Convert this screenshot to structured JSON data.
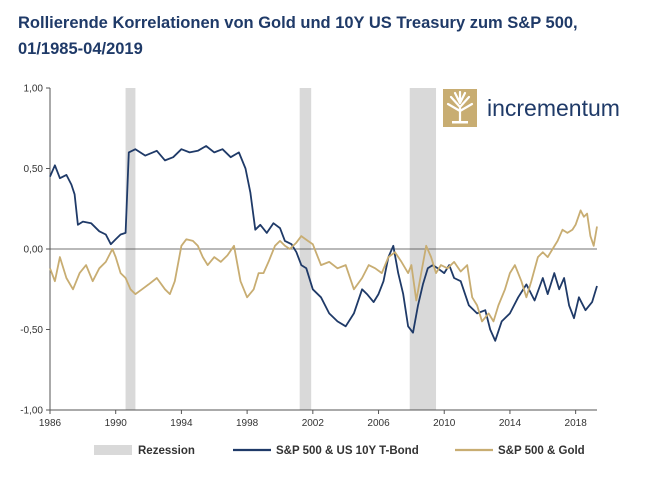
{
  "title_line1": "Rollierende Korrelationen von Gold und 10Y US Treasury zum S&P 500,",
  "title_line2": "01/1985-04/2019",
  "brand": {
    "name": "incrementum"
  },
  "colors": {
    "bond": "#1f3a68",
    "gold": "#c8ad72",
    "recession": "#d9d9d9",
    "title": "#1f3a68"
  },
  "chart_data": {
    "type": "line",
    "title": "Rollierende Korrelationen von Gold und 10Y US Treasury zum S&P 500, 01/1985-04/2019",
    "xlim": [
      1986,
      2019.3
    ],
    "ylim": [
      -1.0,
      1.0
    ],
    "x_ticks": [
      1986,
      1990,
      1994,
      1998,
      2002,
      2006,
      2010,
      2014,
      2018
    ],
    "y_ticks": [
      1.0,
      0.5,
      0.0,
      -0.5,
      -1.0
    ],
    "y_tick_labels": [
      "1,00",
      "0,50",
      "0,00",
      "-0,50",
      "-1,00"
    ],
    "recessions": [
      [
        1990.6,
        1991.2
      ],
      [
        2001.2,
        2001.9
      ],
      [
        2007.9,
        2009.5
      ]
    ],
    "legend": [
      "Rezession",
      "S&P 500 & US 10Y T-Bond",
      "S&P 500 & Gold"
    ],
    "series": [
      {
        "name": "S&P 500 & US 10Y T-Bond",
        "points": [
          [
            1986.0,
            0.45
          ],
          [
            1986.3,
            0.52
          ],
          [
            1986.6,
            0.44
          ],
          [
            1987.0,
            0.46
          ],
          [
            1987.3,
            0.4
          ],
          [
            1987.5,
            0.34
          ],
          [
            1987.7,
            0.15
          ],
          [
            1988.0,
            0.17
          ],
          [
            1988.5,
            0.16
          ],
          [
            1989.0,
            0.11
          ],
          [
            1989.4,
            0.09
          ],
          [
            1989.7,
            0.03
          ],
          [
            1990.0,
            0.06
          ],
          [
            1990.3,
            0.09
          ],
          [
            1990.6,
            0.1
          ],
          [
            1990.8,
            0.6
          ],
          [
            1991.2,
            0.62
          ],
          [
            1991.8,
            0.58
          ],
          [
            1992.5,
            0.61
          ],
          [
            1993.0,
            0.55
          ],
          [
            1993.5,
            0.57
          ],
          [
            1994.0,
            0.62
          ],
          [
            1994.5,
            0.6
          ],
          [
            1995.0,
            0.61
          ],
          [
            1995.5,
            0.64
          ],
          [
            1996.0,
            0.6
          ],
          [
            1996.5,
            0.62
          ],
          [
            1997.0,
            0.57
          ],
          [
            1997.5,
            0.6
          ],
          [
            1997.9,
            0.5
          ],
          [
            1998.2,
            0.35
          ],
          [
            1998.5,
            0.12
          ],
          [
            1998.8,
            0.15
          ],
          [
            1999.2,
            0.1
          ],
          [
            1999.6,
            0.16
          ],
          [
            2000.0,
            0.13
          ],
          [
            2000.3,
            0.05
          ],
          [
            2000.7,
            0.03
          ],
          [
            2001.0,
            -0.02
          ],
          [
            2001.3,
            -0.1
          ],
          [
            2001.6,
            -0.12
          ],
          [
            2002.0,
            -0.25
          ],
          [
            2002.5,
            -0.3
          ],
          [
            2003.0,
            -0.4
          ],
          [
            2003.5,
            -0.45
          ],
          [
            2004.0,
            -0.48
          ],
          [
            2004.5,
            -0.4
          ],
          [
            2005.0,
            -0.25
          ],
          [
            2005.3,
            -0.28
          ],
          [
            2005.7,
            -0.33
          ],
          [
            2006.0,
            -0.28
          ],
          [
            2006.3,
            -0.2
          ],
          [
            2006.6,
            -0.05
          ],
          [
            2006.9,
            0.02
          ],
          [
            2007.2,
            -0.15
          ],
          [
            2007.5,
            -0.28
          ],
          [
            2007.8,
            -0.48
          ],
          [
            2008.1,
            -0.52
          ],
          [
            2008.4,
            -0.35
          ],
          [
            2008.7,
            -0.22
          ],
          [
            2009.0,
            -0.12
          ],
          [
            2009.3,
            -0.1
          ],
          [
            2009.6,
            -0.12
          ],
          [
            2010.0,
            -0.15
          ],
          [
            2010.3,
            -0.1
          ],
          [
            2010.6,
            -0.18
          ],
          [
            2011.0,
            -0.2
          ],
          [
            2011.5,
            -0.35
          ],
          [
            2012.0,
            -0.4
          ],
          [
            2012.5,
            -0.38
          ],
          [
            2012.8,
            -0.5
          ],
          [
            2013.1,
            -0.57
          ],
          [
            2013.5,
            -0.45
          ],
          [
            2014.0,
            -0.4
          ],
          [
            2014.5,
            -0.3
          ],
          [
            2015.0,
            -0.22
          ],
          [
            2015.5,
            -0.32
          ],
          [
            2016.0,
            -0.18
          ],
          [
            2016.3,
            -0.28
          ],
          [
            2016.7,
            -0.15
          ],
          [
            2017.0,
            -0.25
          ],
          [
            2017.3,
            -0.18
          ],
          [
            2017.6,
            -0.35
          ],
          [
            2017.9,
            -0.43
          ],
          [
            2018.2,
            -0.3
          ],
          [
            2018.6,
            -0.38
          ],
          [
            2019.0,
            -0.33
          ],
          [
            2019.3,
            -0.23
          ]
        ]
      },
      {
        "name": "S&P 500 & Gold",
        "points": [
          [
            1986.0,
            -0.12
          ],
          [
            1986.3,
            -0.2
          ],
          [
            1986.6,
            -0.05
          ],
          [
            1987.0,
            -0.18
          ],
          [
            1987.4,
            -0.25
          ],
          [
            1987.8,
            -0.15
          ],
          [
            1988.2,
            -0.1
          ],
          [
            1988.6,
            -0.2
          ],
          [
            1989.0,
            -0.12
          ],
          [
            1989.4,
            -0.08
          ],
          [
            1989.8,
            0.0
          ],
          [
            1990.0,
            -0.05
          ],
          [
            1990.3,
            -0.15
          ],
          [
            1990.6,
            -0.18
          ],
          [
            1990.9,
            -0.25
          ],
          [
            1991.2,
            -0.28
          ],
          [
            1991.6,
            -0.25
          ],
          [
            1992.0,
            -0.22
          ],
          [
            1992.5,
            -0.18
          ],
          [
            1993.0,
            -0.25
          ],
          [
            1993.3,
            -0.28
          ],
          [
            1993.6,
            -0.2
          ],
          [
            1994.0,
            0.02
          ],
          [
            1994.3,
            0.06
          ],
          [
            1994.7,
            0.05
          ],
          [
            1995.0,
            0.02
          ],
          [
            1995.3,
            -0.05
          ],
          [
            1995.6,
            -0.1
          ],
          [
            1996.0,
            -0.05
          ],
          [
            1996.4,
            -0.08
          ],
          [
            1996.8,
            -0.04
          ],
          [
            1997.2,
            0.02
          ],
          [
            1997.6,
            -0.2
          ],
          [
            1998.0,
            -0.3
          ],
          [
            1998.4,
            -0.25
          ],
          [
            1998.7,
            -0.15
          ],
          [
            1999.0,
            -0.15
          ],
          [
            1999.3,
            -0.08
          ],
          [
            1999.7,
            0.02
          ],
          [
            2000.0,
            0.05
          ],
          [
            2000.3,
            0.02
          ],
          [
            2000.6,
            0.0
          ],
          [
            2001.0,
            0.04
          ],
          [
            2001.3,
            0.08
          ],
          [
            2001.7,
            0.05
          ],
          [
            2002.0,
            0.03
          ],
          [
            2002.5,
            -0.1
          ],
          [
            2003.0,
            -0.08
          ],
          [
            2003.5,
            -0.12
          ],
          [
            2004.0,
            -0.1
          ],
          [
            2004.5,
            -0.25
          ],
          [
            2005.0,
            -0.18
          ],
          [
            2005.4,
            -0.1
          ],
          [
            2005.8,
            -0.12
          ],
          [
            2006.2,
            -0.15
          ],
          [
            2006.6,
            -0.05
          ],
          [
            2007.0,
            -0.02
          ],
          [
            2007.4,
            -0.08
          ],
          [
            2007.8,
            -0.15
          ],
          [
            2008.0,
            -0.1
          ],
          [
            2008.3,
            -0.32
          ],
          [
            2008.6,
            -0.15
          ],
          [
            2008.9,
            0.02
          ],
          [
            2009.2,
            -0.05
          ],
          [
            2009.5,
            -0.15
          ],
          [
            2009.8,
            -0.1
          ],
          [
            2010.2,
            -0.12
          ],
          [
            2010.6,
            -0.08
          ],
          [
            2011.0,
            -0.14
          ],
          [
            2011.4,
            -0.1
          ],
          [
            2011.7,
            -0.3
          ],
          [
            2012.0,
            -0.35
          ],
          [
            2012.3,
            -0.45
          ],
          [
            2012.7,
            -0.4
          ],
          [
            2013.0,
            -0.45
          ],
          [
            2013.3,
            -0.35
          ],
          [
            2013.7,
            -0.25
          ],
          [
            2014.0,
            -0.15
          ],
          [
            2014.3,
            -0.1
          ],
          [
            2014.7,
            -0.2
          ],
          [
            2015.0,
            -0.3
          ],
          [
            2015.3,
            -0.2
          ],
          [
            2015.7,
            -0.05
          ],
          [
            2016.0,
            -0.02
          ],
          [
            2016.3,
            -0.05
          ],
          [
            2016.6,
            0.0
          ],
          [
            2016.9,
            0.05
          ],
          [
            2017.2,
            0.12
          ],
          [
            2017.5,
            0.1
          ],
          [
            2017.8,
            0.12
          ],
          [
            2018.0,
            0.15
          ],
          [
            2018.3,
            0.24
          ],
          [
            2018.5,
            0.2
          ],
          [
            2018.7,
            0.22
          ],
          [
            2018.9,
            0.08
          ],
          [
            2019.1,
            0.02
          ],
          [
            2019.3,
            0.14
          ]
        ]
      }
    ]
  }
}
